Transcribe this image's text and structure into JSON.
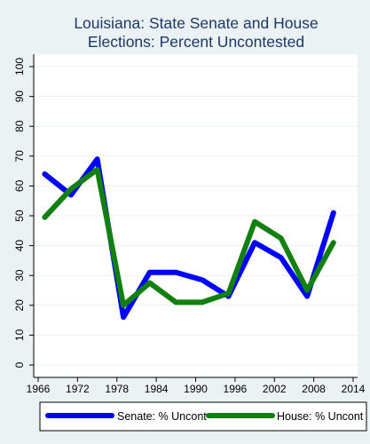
{
  "chart_data": {
    "type": "line",
    "title": [
      "Louisiana: State Senate and House",
      "Elections: Percent Uncontested"
    ],
    "x": [
      1967,
      1971,
      1975,
      1979,
      1983,
      1987,
      1991,
      1995,
      1999,
      2003,
      2007,
      2011
    ],
    "series": [
      {
        "name": "Senate: % Uncont",
        "color": "#0000ff",
        "values": [
          64,
          57,
          69,
          16,
          31,
          31,
          28.5,
          23,
          41,
          36,
          23,
          51
        ]
      },
      {
        "name": "House: % Uncont",
        "color": "#118011",
        "values": [
          49.5,
          59,
          65.5,
          20,
          27.5,
          21,
          21,
          24,
          48,
          42.5,
          25,
          41
        ]
      }
    ],
    "x_ticks": [
      1966,
      1972,
      1978,
      1984,
      1990,
      1996,
      2002,
      2008,
      2014
    ],
    "y_ticks": [
      0,
      10,
      20,
      30,
      40,
      50,
      60,
      70,
      80,
      90,
      100
    ],
    "xlim": [
      1966,
      2014
    ],
    "ylim": [
      0,
      100
    ],
    "grid": true,
    "legend_position": "bottom",
    "background_color": "#eaf2f3",
    "plot_background": "#ffffff",
    "title_color": "#1e3765",
    "grid_color": "#eaf2f3"
  }
}
